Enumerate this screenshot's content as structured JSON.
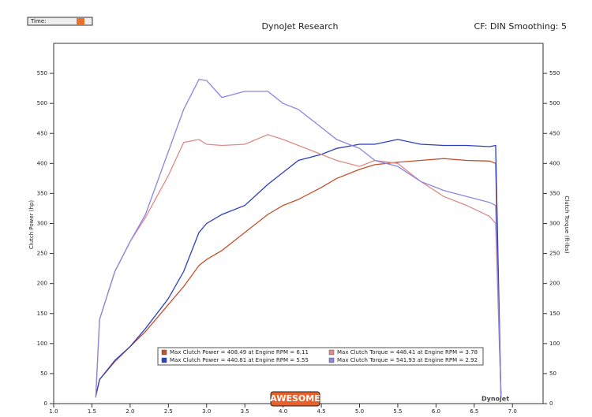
{
  "chart_data": {
    "type": "line",
    "title": "DynoJet Research",
    "subtitle": "CF: DIN Smoothing: 5",
    "time_label": "Time:",
    "logo_text": "AWESOME",
    "brand_text": "Dynojet",
    "y_label": "Clutch Power (hp)",
    "y2_label": "Clutch Torque (ft-lbs)",
    "x": [
      1.55,
      1.6,
      1.8,
      2.0,
      2.2,
      2.5,
      2.7,
      2.9,
      3.0,
      3.2,
      3.5,
      3.8,
      4.0,
      4.2,
      4.5,
      4.7,
      5.0,
      5.2,
      5.5,
      5.8,
      6.1,
      6.4,
      6.7,
      6.78,
      6.85
    ],
    "series": [
      {
        "name": "Max Clutch Power = 408.49 at Engine RPM = 6.11",
        "color": "#c2502c",
        "values": [
          12,
          40,
          70,
          95,
          120,
          165,
          195,
          230,
          240,
          255,
          285,
          315,
          330,
          340,
          360,
          375,
          390,
          398,
          402,
          405,
          408,
          405,
          404,
          400,
          10
        ]
      },
      {
        "name": "Max Clutch Power = 440.81 at Engine RPM = 5.55",
        "color": "#2c3fbf",
        "values": [
          12,
          40,
          72,
          95,
          125,
          175,
          220,
          285,
          300,
          315,
          330,
          365,
          385,
          405,
          415,
          425,
          432,
          432,
          440,
          432,
          430,
          430,
          428,
          430,
          10
        ]
      },
      {
        "name": "Max Clutch Torque = 448.41 at Engine RPM = 3.78",
        "color": "#e08a86",
        "axis": "y2",
        "values": [
          10,
          140,
          220,
          270,
          310,
          380,
          435,
          440,
          432,
          430,
          432,
          448,
          440,
          430,
          415,
          405,
          395,
          405,
          400,
          370,
          345,
          330,
          312,
          300,
          10
        ]
      },
      {
        "name": "Max Clutch Torque = 541.93 at Engine RPM = 2.92",
        "color": "#8a86e0",
        "axis": "y2",
        "values": [
          10,
          140,
          220,
          270,
          315,
          420,
          490,
          540,
          538,
          510,
          520,
          520,
          500,
          490,
          460,
          440,
          425,
          405,
          395,
          370,
          355,
          345,
          335,
          330,
          10
        ]
      }
    ],
    "xlim": [
      1.0,
      7.4
    ],
    "xticks": [
      {
        "value": 1.0,
        "label": "1.0"
      },
      1.5,
      {
        "value": 2.0,
        "label": "2.0"
      },
      2.5,
      {
        "value": 3.0,
        "label": "3.0"
      },
      3.5,
      {
        "value": 4.0,
        "label": "4.0"
      },
      4.5,
      {
        "value": 5.0,
        "label": "5.0"
      },
      5.5,
      {
        "value": 6.0,
        "label": "6.0"
      },
      6.5,
      {
        "value": 7.0,
        "label": "7.0"
      }
    ],
    "ylim": [
      0,
      600
    ],
    "yticks": [
      0,
      50,
      100,
      150,
      200,
      250,
      300,
      350,
      400,
      450,
      500,
      550
    ],
    "y2lim": [
      0,
      600
    ],
    "y2ticks": [
      0,
      50,
      100,
      150,
      200,
      250,
      300,
      350,
      400,
      450,
      500,
      550
    ],
    "grid": false
  }
}
